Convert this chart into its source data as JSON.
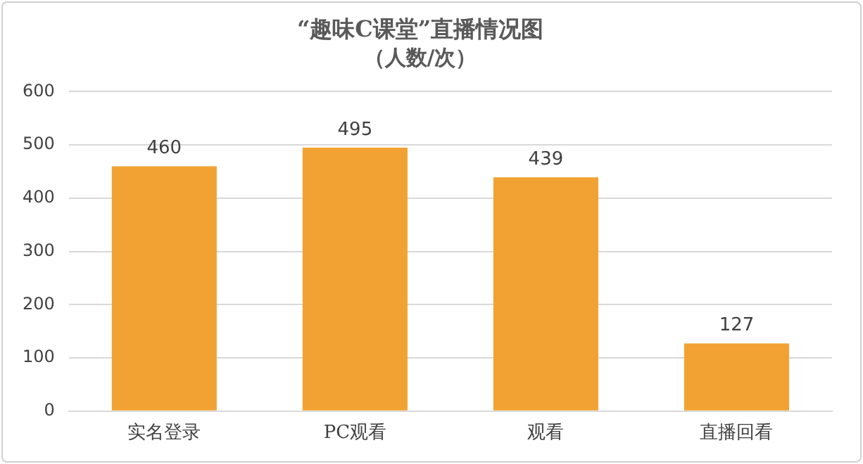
{
  "chart_data": {
    "type": "bar",
    "title": "“趣味C课堂”直播情况图",
    "subtitle": "（人数/次）",
    "categories": [
      "实名登录",
      "PC观看",
      "观看",
      "直播回看"
    ],
    "values": [
      460,
      495,
      439,
      127
    ],
    "color": "#f2a232",
    "ylim": [
      0,
      600
    ],
    "yticks": [
      0,
      100,
      200,
      300,
      400,
      500,
      600
    ],
    "grid": "y",
    "data_labels": true,
    "legend": false
  }
}
